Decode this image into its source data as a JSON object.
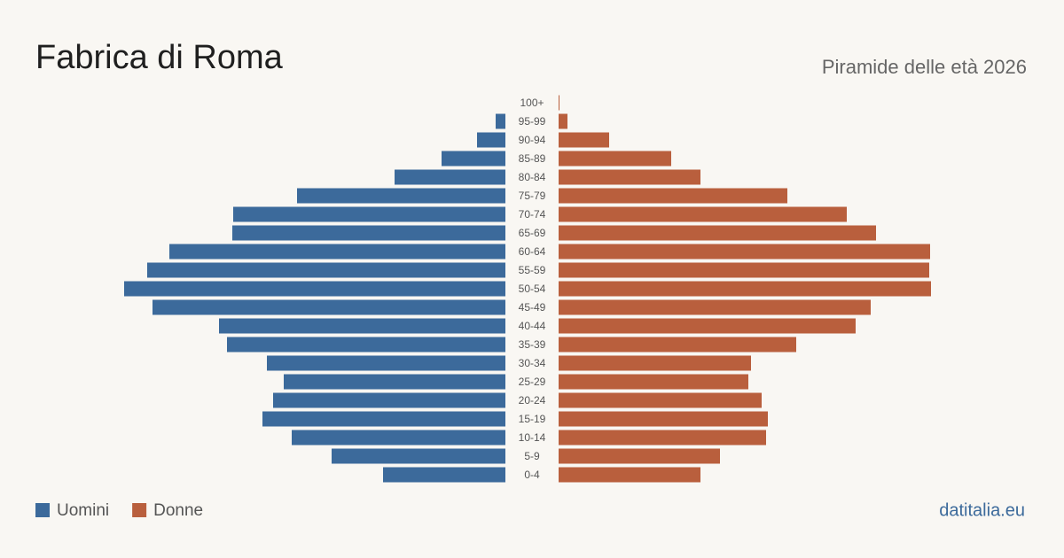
{
  "chart_data": {
    "type": "pyramid",
    "title": "Fabrica di Roma",
    "subtitle": "Piramide delle età 2026",
    "source": "datitalia.eu",
    "categories": [
      "100+",
      "95-99",
      "90-94",
      "85-89",
      "80-84",
      "75-79",
      "70-74",
      "65-69",
      "60-64",
      "55-59",
      "50-54",
      "45-49",
      "40-44",
      "35-39",
      "30-34",
      "25-29",
      "20-24",
      "15-19",
      "10-14",
      "5-9",
      "0-4"
    ],
    "series": [
      {
        "name": "Uomini",
        "color": "#3c6a9b",
        "side": "left",
        "values": [
          0,
          11,
          32,
          72,
          125,
          235,
          307,
          308,
          379,
          404,
          430,
          398,
          323,
          314,
          269,
          250,
          262,
          274,
          241,
          196,
          138
        ]
      },
      {
        "name": "Donne",
        "color": "#b95f3d",
        "side": "right",
        "values": [
          1,
          10,
          57,
          127,
          160,
          258,
          325,
          358,
          419,
          418,
          420,
          352,
          335,
          268,
          217,
          214,
          229,
          236,
          234,
          182,
          160
        ]
      }
    ]
  }
}
